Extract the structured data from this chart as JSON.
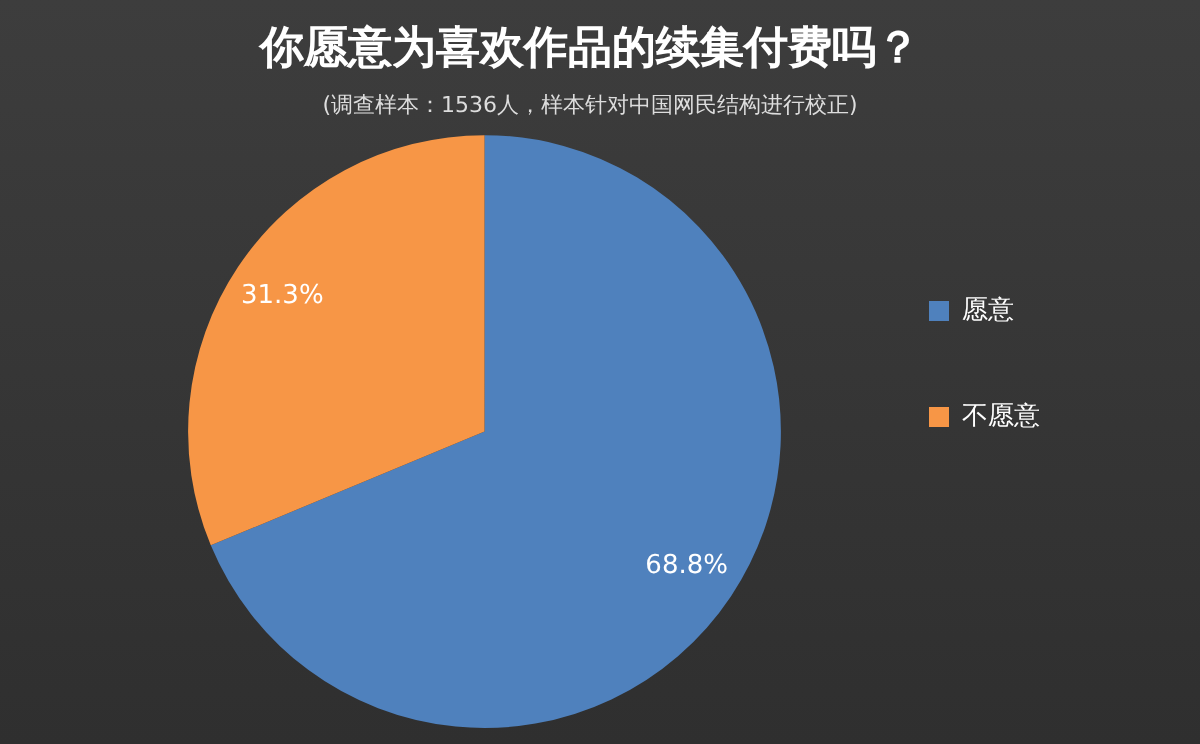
{
  "chart_data": {
    "type": "pie",
    "title": "你愿意为喜欢作品的续集付费吗？",
    "subtitle": "(调查样本：1536人，样本针对中国网民结构进行校正)",
    "categories": [
      "愿意",
      "不愿意"
    ],
    "values": [
      68.8,
      31.3
    ],
    "colors": [
      "#4f81bd",
      "#f79646"
    ],
    "value_labels": [
      "68.8%",
      "31.3%"
    ],
    "legend": "right"
  }
}
